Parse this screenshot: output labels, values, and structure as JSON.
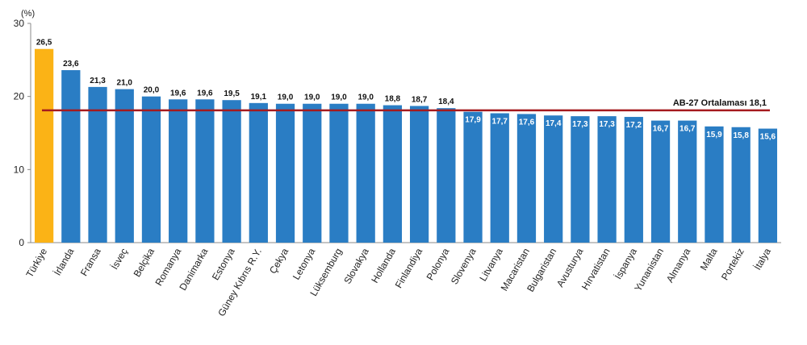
{
  "chart_data": {
    "type": "bar",
    "unit_label": "(%)",
    "ylim": [
      0,
      30
    ],
    "yticks": [
      "0",
      "10",
      "20",
      "30"
    ],
    "grid": false,
    "categories": [
      "Türkiye",
      "İrlanda",
      "Fransa",
      "İsveç",
      "Belçika",
      "Romanya",
      "Danimarka",
      "Estonya",
      "Güney Kıbrıs R.Y.",
      "Çekya",
      "Letonya",
      "Lüksemburg",
      "Slovakya",
      "Hollanda",
      "Finlandiya",
      "Polonya",
      "Slovenya",
      "Litvanya",
      "Macaristan",
      "Bulgaristan",
      "Avusturya",
      "Hırvatistan",
      "İspanya",
      "Yunanistan",
      "Almanya",
      "Malta",
      "Portekiz",
      "İtalya"
    ],
    "values": [
      26.5,
      23.6,
      21.3,
      21.0,
      20.0,
      19.6,
      19.6,
      19.5,
      19.1,
      19.0,
      19.0,
      19.0,
      19.0,
      18.8,
      18.7,
      18.4,
      17.9,
      17.7,
      17.6,
      17.4,
      17.3,
      17.3,
      17.2,
      16.7,
      16.7,
      15.9,
      15.8,
      15.6
    ],
    "value_labels": [
      "26,5",
      "23,6",
      "21,3",
      "21,0",
      "20,0",
      "19,6",
      "19,6",
      "19,5",
      "19,1",
      "19,0",
      "19,0",
      "19,0",
      "19,0",
      "18,8",
      "18,7",
      "18,4",
      "17,9",
      "17,7",
      "17,6",
      "17,4",
      "17,3",
      "17,3",
      "17,2",
      "16,7",
      "16,7",
      "15,9",
      "15,8",
      "15,6"
    ],
    "highlight_index": 0,
    "reference_line": {
      "label": "AB-27 Ortalaması",
      "value": 18.1,
      "value_label": "18,1"
    },
    "colors": {
      "bar": "#2a7dc4",
      "highlight": "#fbb316",
      "reference_line": "#a51a1e"
    }
  }
}
